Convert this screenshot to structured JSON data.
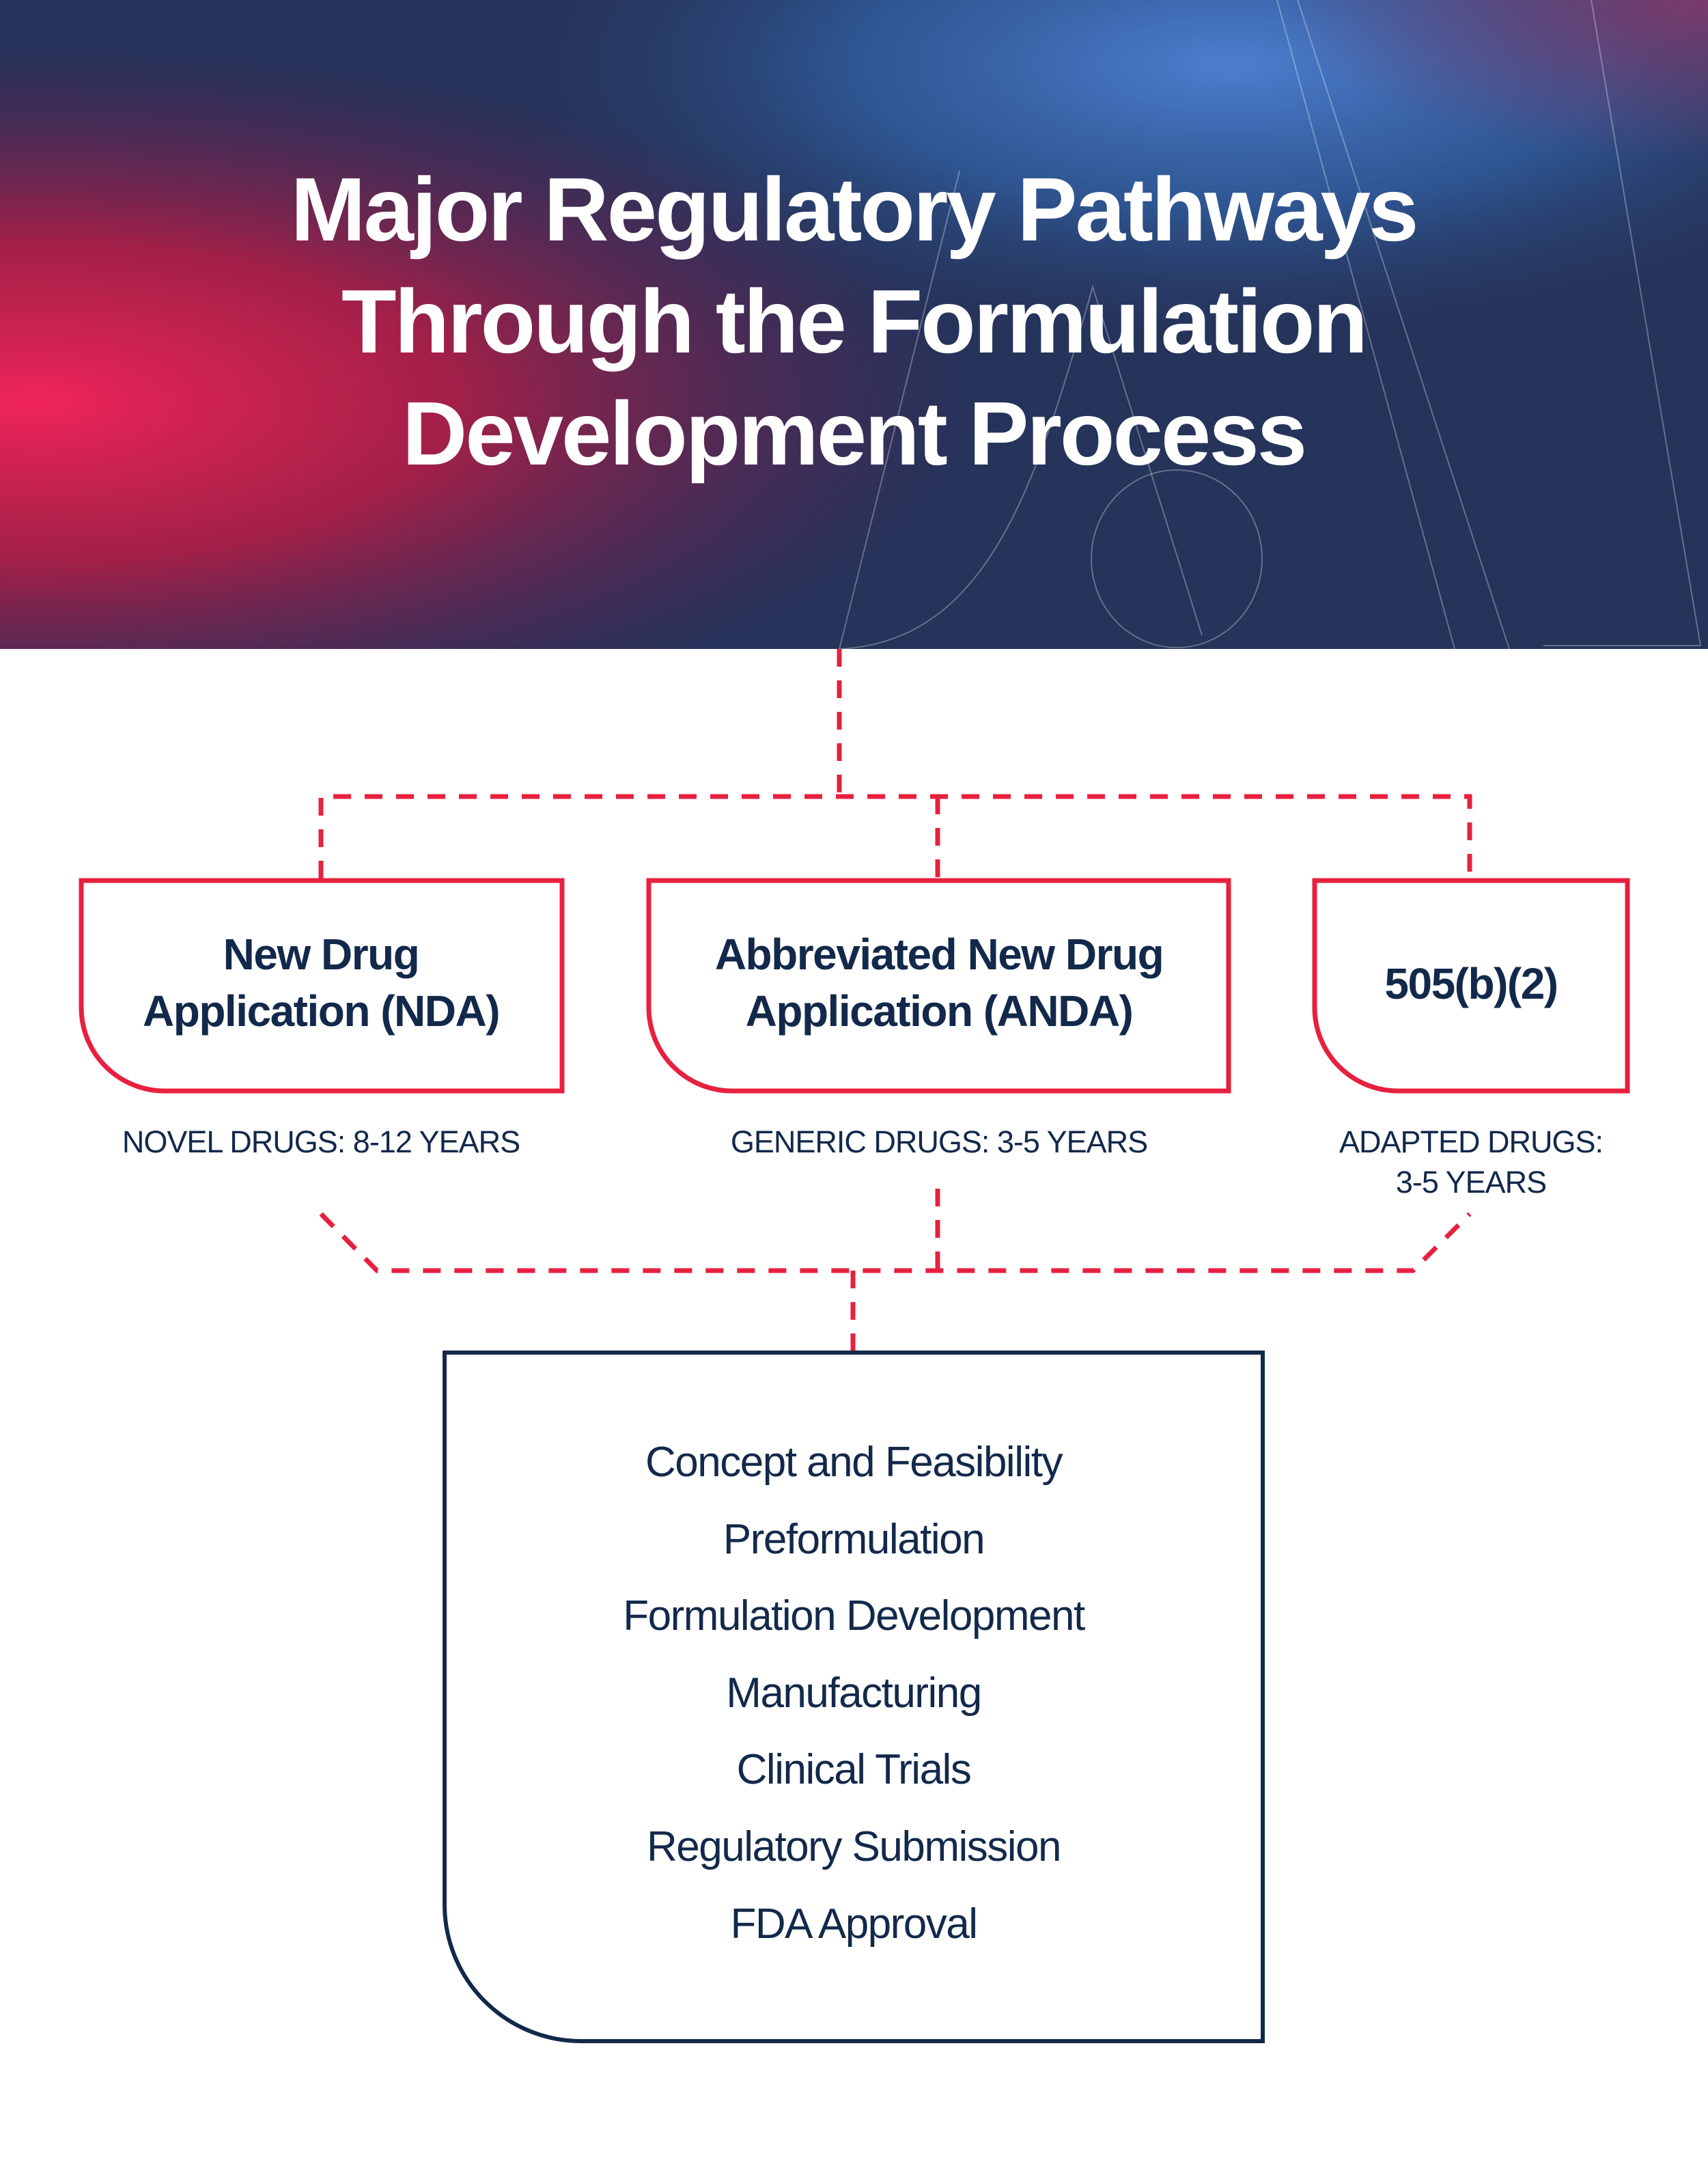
{
  "title": {
    "line1": "Major Regulatory Pathways",
    "line2": "Through the Formulation",
    "line3": "Development Process"
  },
  "colors": {
    "accent": "#e8203f",
    "navy": "#13294b",
    "header_gradient": [
      "#e8204f",
      "#8a1a4a",
      "#24345a",
      "#4a78c4"
    ]
  },
  "pathways": [
    {
      "name_line1": "New Drug",
      "name_line2": "Application (NDA)",
      "label_line1": "NOVEL DRUGS: 8-12 YEARS"
    },
    {
      "name_line1": "Abbreviated New Drug",
      "name_line2": "Application (ANDA)",
      "label_line1": "GENERIC DRUGS: 3-5 YEARS"
    },
    {
      "name_line1": "505(b)(2)",
      "label_line1": "ADAPTED DRUGS:",
      "label_line2": "3-5 YEARS"
    }
  ],
  "process_steps": [
    "Concept and Feasibility",
    "Preformulation",
    "Formulation Development",
    "Manufacturing",
    "Clinical Trials",
    "Regulatory Submission",
    "FDA Approval"
  ]
}
